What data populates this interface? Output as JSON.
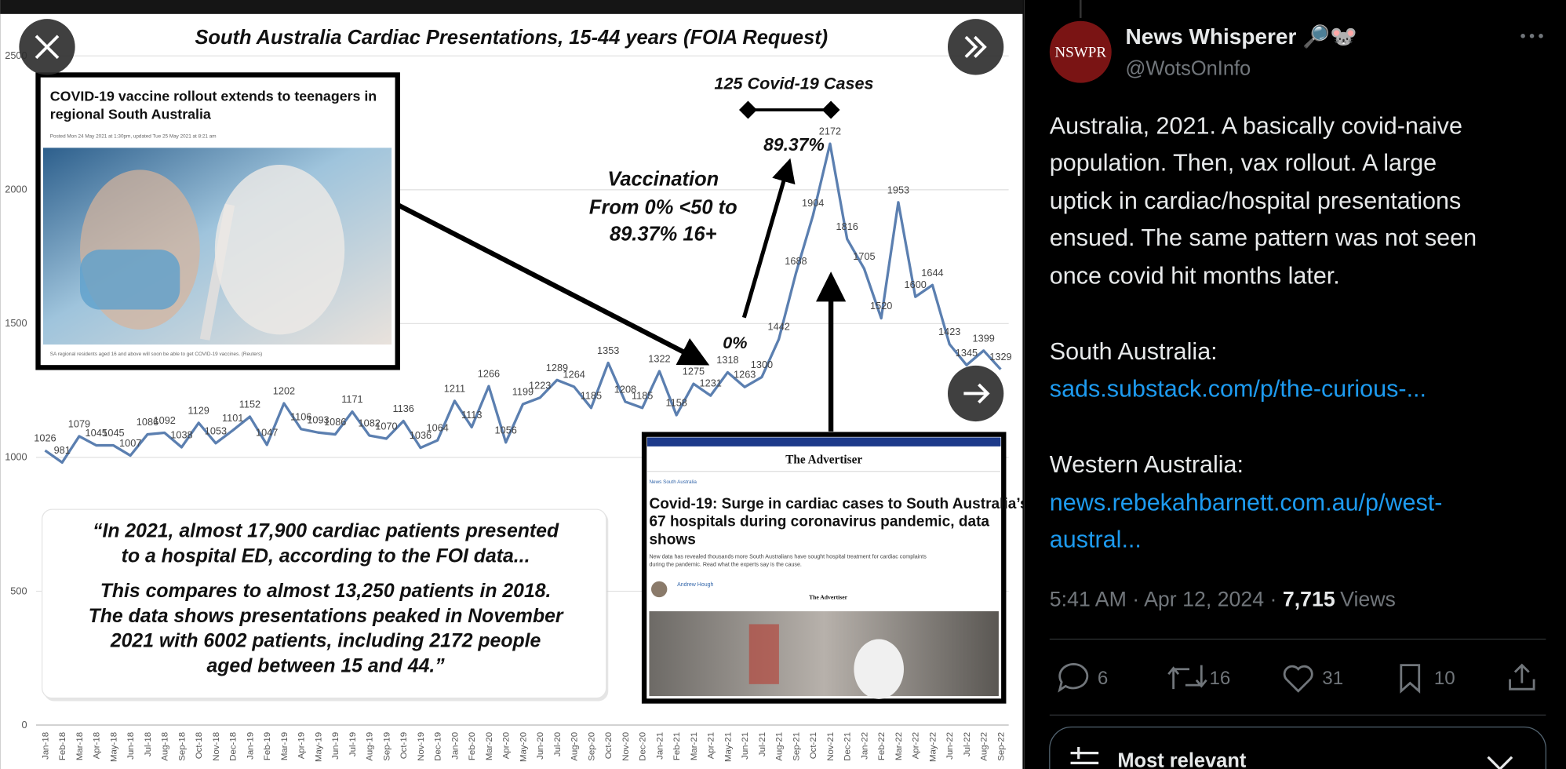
{
  "chart_data": {
    "type": "line",
    "title": "South Australia Cardiac Presentations, 15-44 years (FOIA Request)",
    "categories": [
      "Jan-18",
      "Feb-18",
      "Mar-18",
      "Apr-18",
      "May-18",
      "Jun-18",
      "Jul-18",
      "Aug-18",
      "Sep-18",
      "Oct-18",
      "Nov-18",
      "Dec-18",
      "Jan-19",
      "Feb-19",
      "Mar-19",
      "Apr-19",
      "May-19",
      "Jun-19",
      "Jul-19",
      "Aug-19",
      "Sep-19",
      "Oct-19",
      "Nov-19",
      "Dec-19",
      "Jan-20",
      "Feb-20",
      "Mar-20",
      "Apr-20",
      "May-20",
      "Jun-20",
      "Jul-20",
      "Aug-20",
      "Sep-20",
      "Oct-20",
      "Nov-20",
      "Dec-20",
      "Jan-21",
      "Feb-21",
      "Mar-21",
      "Apr-21",
      "May-21",
      "Jun-21",
      "Jul-21",
      "Aug-21",
      "Sep-21",
      "Oct-21",
      "Nov-21",
      "Dec-21",
      "Jan-22",
      "Feb-22",
      "Mar-22",
      "Apr-22",
      "May-22",
      "Jun-22",
      "Jul-22",
      "Aug-22",
      "Sep-22"
    ],
    "values": [
      1026,
      981,
      1079,
      1045,
      1045,
      1007,
      1086,
      1092,
      1038,
      1129,
      1053,
      1101,
      1152,
      1047,
      1202,
      1106,
      1093,
      1086,
      1171,
      1082,
      1070,
      1136,
      1036,
      1064,
      1211,
      1113,
      1266,
      1056,
      1199,
      1223,
      1289,
      1264,
      1185,
      1353,
      1208,
      1185,
      1322,
      1158,
      1275,
      1231,
      1318,
      1263,
      1300,
      1442,
      1688,
      1904,
      2172,
      1816,
      1705,
      1520,
      1953,
      1600,
      1644,
      1423,
      1345,
      1399,
      1329
    ],
    "color": "#5b7fb0",
    "ylim": [
      0,
      2500
    ],
    "yticks": [
      0,
      500,
      1000,
      1500,
      2000,
      2500
    ],
    "grid": true,
    "annotations": [
      "125 Covid-19 Cases",
      "89.37%",
      "0%",
      "Vaccination",
      "From 0% <50 to",
      "89.37% 16+"
    ],
    "quote": [
      "“In 2021, almost 17,900 cardiac patients presented",
      "to a hospital ED, according to the FOI data...",
      "This compares to almost 13,250 patients in 2018.",
      "The data shows presentations peaked in November",
      "2021 with 6002 patients, including 2172 people",
      "aged between 15 and 44.”"
    ]
  },
  "clips": {
    "left": {
      "headline": [
        "COVID-19 vaccine rollout extends to teenagers in",
        "regional South Australia"
      ],
      "posted": "Posted Mon 24 May 2021 at 1:30pm, updated Tue 25 May 2021 at 8:21 am",
      "caption": "SA regional residents aged 16 and above will soon be able to get COVID-19 vaccines. (Reuters)"
    },
    "right": {
      "masthead": "The Advertiser",
      "breadcrumb": "News   South Australia",
      "headline": [
        "Covid-19: Surge in cardiac cases to South Australia’s",
        "67 hospitals during coronavirus pandemic, data",
        "shows"
      ],
      "standfirst": [
        "New data has revealed thousands more South Australians have sought hospital treatment for cardiac complaints",
        "during the pandemic. Read what the experts say is the cause."
      ],
      "author": "Andrew Hough",
      "brand": "The Advertiser"
    }
  },
  "post": {
    "avatar": "NSWPR",
    "name": "News Whisperer 🔎🐭",
    "handle": "@WotsOnInfo",
    "text": [
      "Australia, 2021. A basically covid-naive",
      "population. Then, vax rollout. A large",
      "uptick in cardiac/hospital presentations",
      "ensued. The same pattern was not seen",
      "once covid hit months later."
    ],
    "sa_label": "South Australia:",
    "sa_link": "sads.substack.com/p/the-curious-...",
    "wa_label": "Western Australia:",
    "wa_link": [
      "news.rebekahbarnett.com.au/p/west-",
      "austral..."
    ],
    "meta": "5:41 AM · Apr 12, 2024 · ",
    "views": "7,715",
    "views_label": "Views",
    "replies": 6,
    "reposts": 16,
    "likes": 31,
    "bookmarks": 10,
    "sort": "Most relevant"
  }
}
